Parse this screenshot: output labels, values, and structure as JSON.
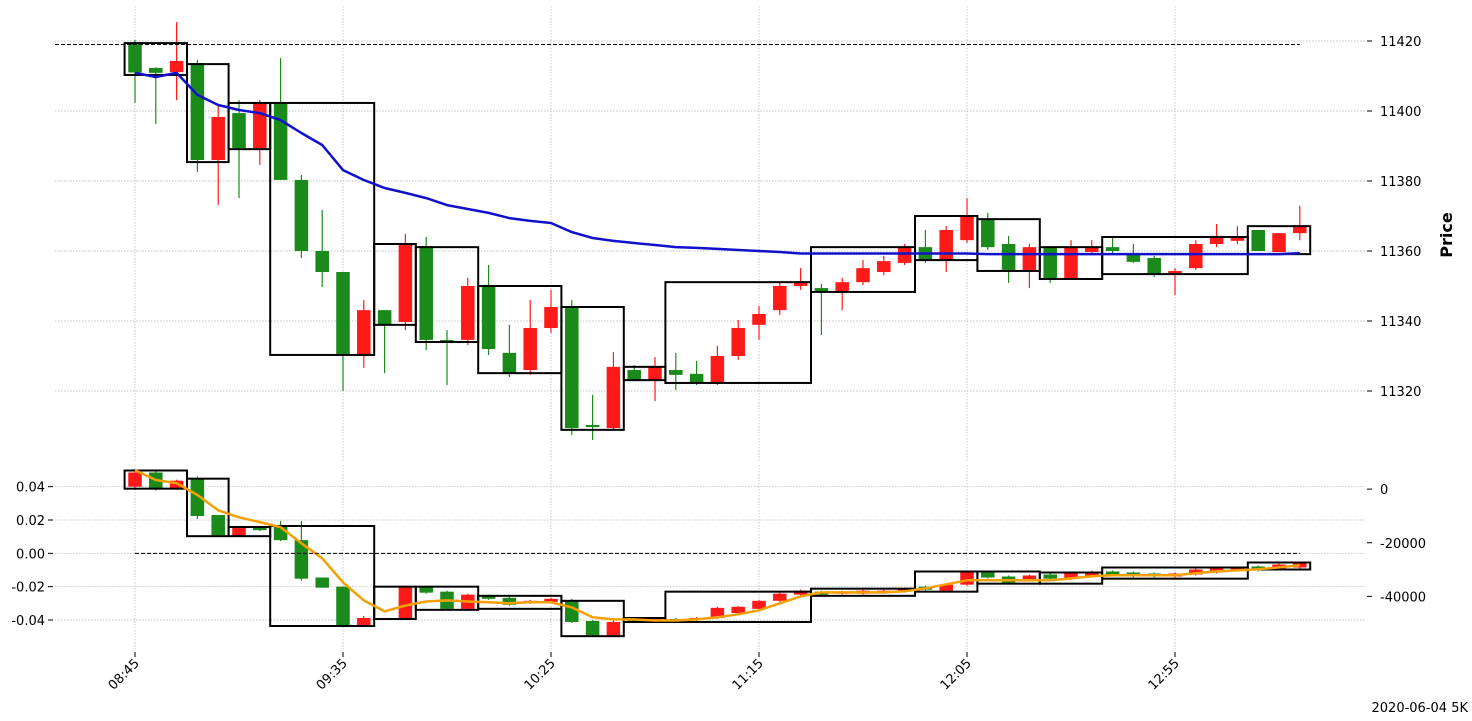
{
  "chart_data": [
    {
      "type": "candlestick",
      "ylabel": "Price",
      "yaxis_side": "right",
      "grid": true,
      "up_color": "#ff1a1a",
      "down_color": "#1a8a1a",
      "ylim": [
        11300,
        11430
      ],
      "yticks": [
        11320,
        11340,
        11360,
        11380,
        11400,
        11420
      ],
      "open": [
        11419.4,
        11412.3,
        11411.1,
        11413.7,
        11386,
        11399.4,
        11389.4,
        11402.3,
        11380.3,
        11360,
        11354,
        11330.3,
        11343.1,
        11339.7,
        11361.4,
        11334.6,
        11334.6,
        11350,
        11330.9,
        11326,
        11338,
        11344,
        11310.3,
        11309.4,
        11326,
        11323.1,
        11326,
        11324.9,
        11322.3,
        11330,
        11338.9,
        11343.1,
        11350,
        11349.4,
        11348.3,
        11351.1,
        11354,
        11356.6,
        11361.1,
        11357.4,
        11363.1,
        11368.9,
        11362,
        11354.6,
        11361.1,
        11352,
        11359.7,
        11361.1,
        11359.1,
        11358,
        11353.7,
        11355.1,
        11362,
        11362.9,
        11366,
        11359.7,
        11365.1
      ],
      "high": [
        11420.3,
        11412.5,
        11425.4,
        11414.6,
        11401.7,
        11403.1,
        11403.1,
        11415.1,
        11381.7,
        11371.7,
        11354,
        11346,
        11343.1,
        11364.9,
        11364,
        11337.4,
        11352.3,
        11356,
        11338.9,
        11346,
        11348.9,
        11346,
        11318.9,
        11331.1,
        11327.4,
        11329.7,
        11330.9,
        11328.6,
        11332.9,
        11340.3,
        11344.3,
        11350.9,
        11355.1,
        11350.6,
        11352.3,
        11357.4,
        11358.6,
        11362,
        11366,
        11367.1,
        11375.1,
        11370.9,
        11364.3,
        11362,
        11361.4,
        11363.1,
        11363.1,
        11364.3,
        11362,
        11358.6,
        11355.1,
        11363.1,
        11367.7,
        11367.1,
        11366,
        11365.1,
        11372.9
      ],
      "low": [
        11402.3,
        11396.3,
        11403.1,
        11382.6,
        11373.1,
        11375.1,
        11384.6,
        11380.3,
        11358,
        11349.7,
        11320,
        11326.6,
        11325.1,
        11337.4,
        11331.7,
        11321.7,
        11333.1,
        11330.3,
        11324,
        11324.6,
        11336.6,
        11307.4,
        11306,
        11308.9,
        11323.1,
        11317.1,
        11320.3,
        11321.7,
        11321.7,
        11328.9,
        11334.6,
        11341.7,
        11348.9,
        11336,
        11343.1,
        11350.3,
        11353.1,
        11356,
        11356.6,
        11354,
        11362.3,
        11360.3,
        11350.9,
        11349.4,
        11350.9,
        11352,
        11359.4,
        11359.4,
        11356.6,
        11352.6,
        11347.4,
        11354.6,
        11361.1,
        11362,
        11360,
        11359.7,
        11363.1
      ],
      "close": [
        11411,
        11410.9,
        11414.3,
        11386,
        11398.3,
        11389.4,
        11402.3,
        11380.3,
        11360,
        11354,
        11330.3,
        11343.1,
        11339.1,
        11362,
        11334.6,
        11334,
        11350,
        11332,
        11325.1,
        11338,
        11344,
        11309.4,
        11309.7,
        11326.9,
        11323.1,
        11326.9,
        11324.6,
        11322.3,
        11330,
        11338,
        11342,
        11350,
        11351.1,
        11348.3,
        11351.1,
        11355.1,
        11357.1,
        11361.1,
        11357.4,
        11366,
        11370,
        11361.1,
        11354.6,
        11361.1,
        11352,
        11361.1,
        11361.1,
        11360,
        11356.9,
        11353.4,
        11354.3,
        11362,
        11364.3,
        11364,
        11360,
        11365.1,
        11367.1
      ],
      "boxes": [
        {
          "from": 0,
          "to": 2,
          "top": 11419.4,
          "bottom": 11410.3
        },
        {
          "from": 3,
          "to": 4,
          "top": 11413.4,
          "bottom": 11385.4
        },
        {
          "from": 5,
          "to": 6,
          "top": 11402.3,
          "bottom": 11389.1
        },
        {
          "from": 7,
          "to": 11,
          "top": 11402.3,
          "bottom": 11330.3
        },
        {
          "from": 12,
          "to": 13,
          "top": 11362,
          "bottom": 11338.9
        },
        {
          "from": 14,
          "to": 16,
          "top": 11361.1,
          "bottom": 11334
        },
        {
          "from": 17,
          "to": 20,
          "top": 11350,
          "bottom": 11325.1
        },
        {
          "from": 21,
          "to": 23,
          "top": 11344,
          "bottom": 11308.9
        },
        {
          "from": 24,
          "to": 25,
          "top": 11326.9,
          "bottom": 11323.1
        },
        {
          "from": 26,
          "to": 32,
          "top": 11351.1,
          "bottom": 11322.3
        },
        {
          "from": 33,
          "to": 37,
          "top": 11361.1,
          "bottom": 11348.3
        },
        {
          "from": 38,
          "to": 40,
          "top": 11370,
          "bottom": 11357.4
        },
        {
          "from": 41,
          "to": 43,
          "top": 11369.1,
          "bottom": 11354.3
        },
        {
          "from": 44,
          "to": 46,
          "top": 11361.1,
          "bottom": 11352
        },
        {
          "from": 47,
          "to": 53,
          "top": 11364,
          "bottom": 11353.4
        },
        {
          "from": 54,
          "to": 56,
          "top": 11367.1,
          "bottom": 11359.1
        }
      ],
      "line": {
        "color": "#1111cc",
        "values": [
          11410.9,
          11409.7,
          11410.9,
          11404.6,
          11401.7,
          11400.3,
          11399.4,
          11397.4,
          11393.7,
          11390.3,
          11383.1,
          11380.3,
          11378,
          11376.6,
          11375.1,
          11373.1,
          11372,
          11370.9,
          11369.4,
          11368.6,
          11368,
          11365.4,
          11363.7,
          11362.9,
          11362.3,
          11361.7,
          11361.1,
          11360.9,
          11360.6,
          11360.3,
          11360,
          11359.7,
          11359.3,
          11359.3,
          11359.3,
          11359.3,
          11359.3,
          11359.3,
          11359.3,
          11359.3,
          11359.3,
          11359.1,
          11359.1,
          11359.1,
          11359.1,
          11359.1,
          11359.1,
          11359.1,
          11359.1,
          11359.1,
          11359.1,
          11359.1,
          11359.1,
          11359.1,
          11359.1,
          11359.1,
          11359.4
        ]
      },
      "hline": 11419
    },
    {
      "type": "candlestick",
      "grid": true,
      "yaxis_side": "left",
      "up_color": "#ff1a1a",
      "down_color": "#1a8a1a",
      "categories": [
        "08:45",
        null,
        null,
        null,
        null,
        null,
        null,
        null,
        null,
        null,
        "09:35",
        null,
        null,
        null,
        null,
        null,
        null,
        null,
        null,
        null,
        "10:25",
        null,
        null,
        null,
        null,
        null,
        null,
        null,
        null,
        null,
        "11:15",
        null,
        null,
        null,
        null,
        null,
        null,
        null,
        null,
        null,
        "12:05",
        null,
        null,
        null,
        null,
        null,
        null,
        null,
        null,
        null,
        "12:55",
        null,
        null,
        null,
        null,
        null,
        null
      ],
      "ylim": [
        -0.058,
        0.053
      ],
      "yticks": [
        -0.04,
        -0.02,
        {
          "value": 0,
          "label": "0.00"
        },
        0.02,
        0.04
      ],
      "y2lim": [
        -60000,
        9000
      ],
      "y2ticks": [
        -40000,
        -20000,
        0
      ],
      "open": [
        0.04,
        0.0485,
        0.0388,
        0.0448,
        0.023,
        0.0103,
        0.0158,
        0.0158,
        0.0079,
        -0.0145,
        -0.02,
        -0.043,
        -0.0388,
        -0.0394,
        -0.02,
        -0.023,
        -0.0333,
        -0.0255,
        -0.0267,
        -0.0297,
        -0.0291,
        -0.0285,
        -0.0406,
        -0.0491,
        -0.0388,
        -0.0406,
        -0.0394,
        -0.04,
        -0.0388,
        -0.0358,
        -0.0333,
        -0.0285,
        -0.0248,
        -0.023,
        -0.0242,
        -0.0242,
        -0.0236,
        -0.023,
        -0.02,
        -0.0224,
        -0.0188,
        -0.0109,
        -0.0139,
        -0.0164,
        -0.0127,
        -0.0152,
        -0.0133,
        -0.0109,
        -0.0115,
        -0.0121,
        -0.0139,
        -0.0127,
        -0.0115,
        -0.0103,
        -0.0079,
        -0.0097,
        -0.0085
      ],
      "high": [
        0.0503,
        0.0491,
        0.0442,
        0.0461,
        0.023,
        0.0158,
        0.0164,
        0.0194,
        0.0194,
        -0.0145,
        -0.02,
        -0.0376,
        -0.0388,
        -0.0194,
        -0.0194,
        -0.0224,
        -0.0242,
        -0.0248,
        -0.0261,
        -0.0279,
        -0.0267,
        -0.0273,
        -0.04,
        -0.04,
        -0.0382,
        -0.0382,
        -0.0388,
        -0.0382,
        -0.0321,
        -0.0315,
        -0.0279,
        -0.0236,
        -0.0218,
        -0.0224,
        -0.0224,
        -0.0218,
        -0.0218,
        -0.0206,
        -0.0194,
        -0.0182,
        -0.0109,
        -0.0103,
        -0.0133,
        -0.0127,
        -0.0121,
        -0.0115,
        -0.0103,
        -0.0103,
        -0.0109,
        -0.0115,
        -0.0115,
        -0.0091,
        -0.0079,
        -0.0079,
        -0.0073,
        -0.0061,
        -0.0049
      ],
      "low": [
        0.0382,
        0.0376,
        0.0382,
        0.0206,
        0.0097,
        0.0097,
        0.0133,
        0.0073,
        -0.0164,
        -0.0206,
        -0.043,
        -0.0436,
        -0.0394,
        -0.0394,
        -0.0242,
        -0.0339,
        -0.0339,
        -0.0279,
        -0.0315,
        -0.0303,
        -0.0297,
        -0.0418,
        -0.0497,
        -0.0497,
        -0.0412,
        -0.0412,
        -0.0418,
        -0.0406,
        -0.0394,
        -0.0364,
        -0.0339,
        -0.0291,
        -0.0255,
        -0.0255,
        -0.0248,
        -0.0248,
        -0.0242,
        -0.0236,
        -0.0224,
        -0.023,
        -0.0194,
        -0.0152,
        -0.0182,
        -0.017,
        -0.0158,
        -0.0158,
        -0.0139,
        -0.0133,
        -0.0145,
        -0.0145,
        -0.0145,
        -0.0133,
        -0.0121,
        -0.0109,
        -0.0109,
        -0.0103,
        -0.0091
      ],
      "close": [
        0.0485,
        0.0388,
        0.0436,
        0.0224,
        0.0109,
        0.0152,
        0.0139,
        0.0079,
        -0.0152,
        -0.0206,
        -0.043,
        -0.0388,
        -0.0394,
        -0.02,
        -0.0236,
        -0.0333,
        -0.0248,
        -0.0273,
        -0.0309,
        -0.0285,
        -0.0273,
        -0.0412,
        -0.0491,
        -0.0412,
        -0.0406,
        -0.0388,
        -0.0412,
        -0.0388,
        -0.0327,
        -0.0321,
        -0.0285,
        -0.0242,
        -0.0224,
        -0.0248,
        -0.023,
        -0.0224,
        -0.0224,
        -0.0212,
        -0.0218,
        -0.0188,
        -0.0115,
        -0.0145,
        -0.0176,
        -0.0133,
        -0.0152,
        -0.0121,
        -0.0109,
        -0.0127,
        -0.0139,
        -0.0139,
        -0.0121,
        -0.0097,
        -0.0085,
        -0.0085,
        -0.0103,
        -0.0067,
        -0.0055
      ],
      "boxes": [
        {
          "from": 0,
          "to": 2,
          "top": 0.0497,
          "bottom": 0.0388
        },
        {
          "from": 3,
          "to": 4,
          "top": 0.0448,
          "bottom": 0.0103
        },
        {
          "from": 5,
          "to": 6,
          "top": 0.0158,
          "bottom": 0.0103
        },
        {
          "from": 7,
          "to": 11,
          "top": 0.0164,
          "bottom": -0.0436
        },
        {
          "from": 12,
          "to": 13,
          "top": -0.02,
          "bottom": -0.0394
        },
        {
          "from": 14,
          "to": 16,
          "top": -0.02,
          "bottom": -0.0339
        },
        {
          "from": 17,
          "to": 20,
          "top": -0.0255,
          "bottom": -0.0333
        },
        {
          "from": 21,
          "to": 23,
          "top": -0.0285,
          "bottom": -0.0497
        },
        {
          "from": 24,
          "to": 25,
          "top": -0.0388,
          "bottom": -0.0412
        },
        {
          "from": 26,
          "to": 32,
          "top": -0.023,
          "bottom": -0.0412
        },
        {
          "from": 33,
          "to": 37,
          "top": -0.0212,
          "bottom": -0.0255
        },
        {
          "from": 38,
          "to": 40,
          "top": -0.0109,
          "bottom": -0.023
        },
        {
          "from": 41,
          "to": 43,
          "top": -0.0109,
          "bottom": -0.0182
        },
        {
          "from": 44,
          "to": 46,
          "top": -0.0115,
          "bottom": -0.0182
        },
        {
          "from": 47,
          "to": 53,
          "top": -0.0085,
          "bottom": -0.0152
        },
        {
          "from": 54,
          "to": 56,
          "top": -0.0055,
          "bottom": -0.0097
        }
      ],
      "line": {
        "color": "#f5a000",
        "axis": "y2",
        "values": [
          7100,
          3400,
          2200,
          -2200,
          -7900,
          -10500,
          -12300,
          -14200,
          -20200,
          -25800,
          -34800,
          -41500,
          -45600,
          -43400,
          -41900,
          -41500,
          -41900,
          -42200,
          -42600,
          -42200,
          -42200,
          -44100,
          -47800,
          -48600,
          -48600,
          -49000,
          -49000,
          -48600,
          -47800,
          -46700,
          -45200,
          -42600,
          -40000,
          -38500,
          -38500,
          -38500,
          -38500,
          -38100,
          -37000,
          -35500,
          -34000,
          -34000,
          -34000,
          -34000,
          -34000,
          -33300,
          -32500,
          -32100,
          -32100,
          -32100,
          -32100,
          -31400,
          -30700,
          -30300,
          -29900,
          -29200,
          -28400
        ]
      },
      "hline": 0,
      "annotation": "2020-06-04 5K"
    }
  ]
}
